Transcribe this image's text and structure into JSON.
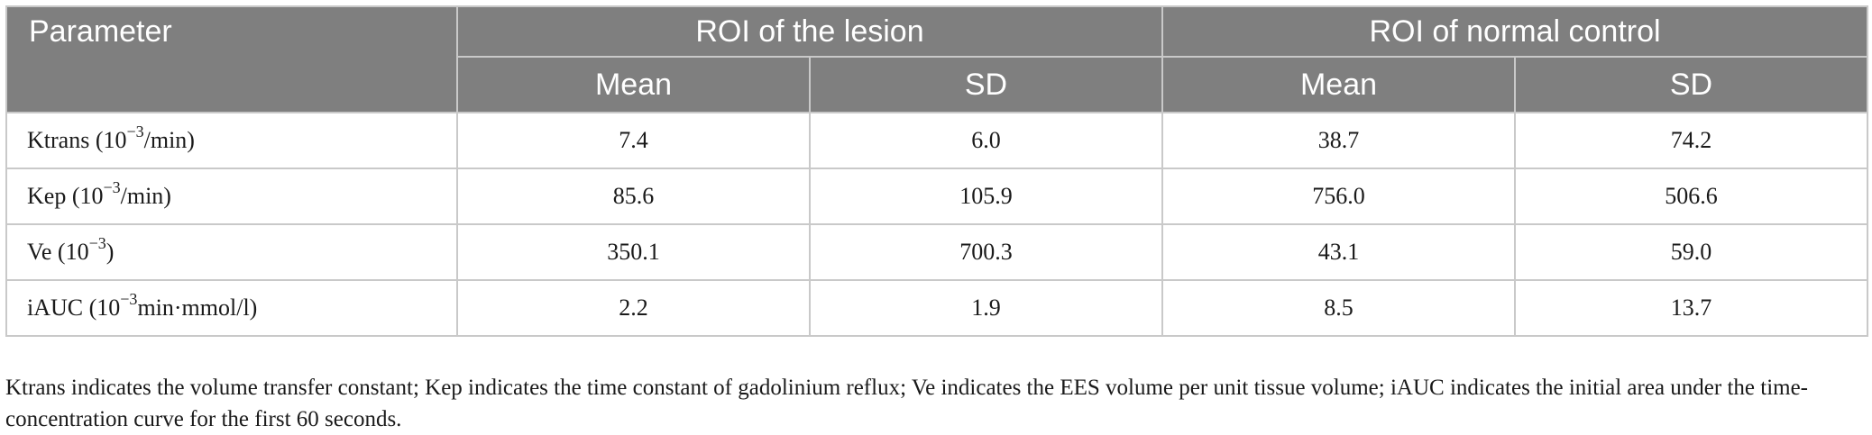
{
  "table": {
    "header": {
      "parameter": "Parameter",
      "group_lesion": "ROI of the lesion",
      "group_normal": "ROI of normal control",
      "mean": "Mean",
      "sd": "SD"
    },
    "rows": [
      {
        "name": "Ktrans (10",
        "exp": "−3",
        "unit": "/min)",
        "lesion_mean": "7.4",
        "lesion_sd": "6.0",
        "normal_mean": "38.7",
        "normal_sd": "74.2"
      },
      {
        "name": "Kep (10",
        "exp": "−3",
        "unit": "/min)",
        "lesion_mean": "85.6",
        "lesion_sd": "105.9",
        "normal_mean": "756.0",
        "normal_sd": "506.6"
      },
      {
        "name": "Ve (10",
        "exp": "−3",
        "unit": ")",
        "lesion_mean": "350.1",
        "lesion_sd": "700.3",
        "normal_mean": "43.1",
        "normal_sd": "59.0"
      },
      {
        "name": "iAUC (10",
        "exp": "−3",
        "unit": "min·mmol/l)",
        "lesion_mean": "2.2",
        "lesion_sd": "1.9",
        "normal_mean": "8.5",
        "normal_sd": "13.7"
      }
    ]
  },
  "footnote": "Ktrans indicates the volume transfer constant; Kep indicates the time constant of gadolinium reflux; Ve indicates the EES volume per unit tissue volume; iAUC indicates the initial area under the time-concentration curve for the first 60 seconds."
}
